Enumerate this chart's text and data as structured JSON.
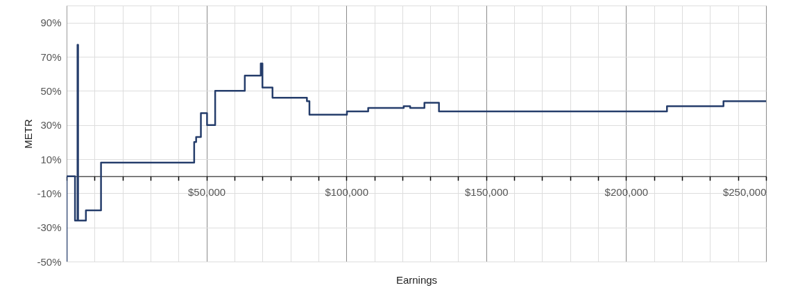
{
  "chart_data": {
    "type": "step",
    "xlabel": "Earnings",
    "ylabel": "METR",
    "x": [
      0,
      0,
      3000,
      3900,
      4100,
      6900,
      12300,
      45600,
      46300,
      48000,
      50200,
      53100,
      63700,
      69400,
      70000,
      73600,
      85900,
      86800,
      100200,
      107800,
      120500,
      122800,
      127900,
      133100,
      214600,
      234800,
      250000
    ],
    "series": [
      {
        "color": "#253d6b",
        "values": [
          -50,
          0,
          -26,
          77,
          -26,
          -20,
          8,
          20,
          23,
          37,
          30,
          50,
          59,
          66,
          52,
          46,
          44,
          36,
          38,
          40,
          41,
          40,
          43,
          38,
          41,
          44,
          44
        ]
      }
    ],
    "xlim": [
      0,
      250000
    ],
    "xticks": [
      {
        "value": 0,
        "label": null
      },
      {
        "value": 10000,
        "label": null
      },
      {
        "value": 20000,
        "label": null
      },
      {
        "value": 30000,
        "label": null
      },
      {
        "value": 40000,
        "label": null
      },
      {
        "value": 50000,
        "label": "$50,000"
      },
      {
        "value": 60000,
        "label": null
      },
      {
        "value": 70000,
        "label": null
      },
      {
        "value": 80000,
        "label": null
      },
      {
        "value": 90000,
        "label": null
      },
      {
        "value": 100000,
        "label": "$100,000"
      },
      {
        "value": 110000,
        "label": null
      },
      {
        "value": 120000,
        "label": null
      },
      {
        "value": 130000,
        "label": null
      },
      {
        "value": 140000,
        "label": null
      },
      {
        "value": 150000,
        "label": "$150,000"
      },
      {
        "value": 160000,
        "label": null
      },
      {
        "value": 170000,
        "label": null
      },
      {
        "value": 180000,
        "label": null
      },
      {
        "value": 190000,
        "label": null
      },
      {
        "value": 200000,
        "label": "$200,000"
      },
      {
        "value": 210000,
        "label": null
      },
      {
        "value": 220000,
        "label": null
      },
      {
        "value": 230000,
        "label": null
      },
      {
        "value": 240000,
        "label": null
      },
      {
        "value": 250000,
        "label": "$250,000"
      }
    ],
    "ylim": [
      -50,
      100
    ],
    "yticks": [
      {
        "value": -50,
        "label": "-50%"
      },
      {
        "value": -30,
        "label": "-30%"
      },
      {
        "value": -10,
        "label": "-10%"
      },
      {
        "value": 10,
        "label": "10%"
      },
      {
        "value": 30,
        "label": "30%"
      },
      {
        "value": 50,
        "label": "50%"
      },
      {
        "value": 70,
        "label": "70%"
      },
      {
        "value": 90,
        "label": "90%"
      }
    ],
    "grid": true,
    "line_style": "solid"
  }
}
